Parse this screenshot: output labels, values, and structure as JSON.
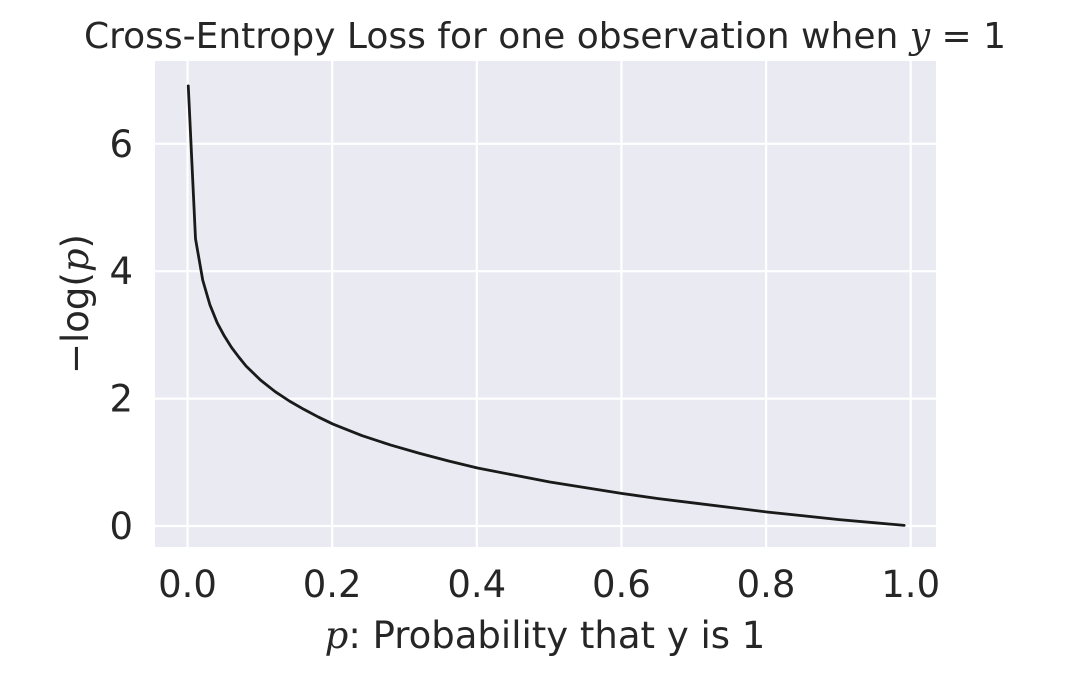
{
  "chart_data": {
    "type": "line",
    "title": {
      "prefix": "Cross-Entropy Loss for one observation when ",
      "math_var": "y",
      "math_rest": " = 1"
    },
    "xlabel": {
      "math_var": "p",
      "rest": ": Probability that y is 1"
    },
    "ylabel": {
      "prefix": "−log(",
      "math_var": "p",
      "suffix": ")"
    },
    "xlim": [
      -0.045,
      1.035
    ],
    "ylim": [
      -0.33,
      7.3
    ],
    "xticks": [
      0.0,
      0.2,
      0.4,
      0.6,
      0.8,
      1.0
    ],
    "xtick_labels": [
      "0.0",
      "0.2",
      "0.4",
      "0.6",
      "0.8",
      "1.0"
    ],
    "yticks": [
      0,
      2,
      4,
      6
    ],
    "ytick_labels": [
      "0",
      "2",
      "4",
      "6"
    ],
    "grid": true,
    "series": [
      {
        "function": "-log(p)",
        "color": "#1a1a1a",
        "x": [
          0.001,
          0.011,
          0.021,
          0.031,
          0.041,
          0.051,
          0.061,
          0.071,
          0.081,
          0.091,
          0.101,
          0.121,
          0.141,
          0.161,
          0.181,
          0.201,
          0.241,
          0.281,
          0.321,
          0.361,
          0.401,
          0.451,
          0.501,
          0.551,
          0.601,
          0.651,
          0.701,
          0.751,
          0.801,
          0.851,
          0.901,
          0.951,
          0.991
        ],
        "y": [
          6.91,
          4.51,
          3.86,
          3.47,
          3.19,
          2.98,
          2.8,
          2.65,
          2.51,
          2.4,
          2.29,
          2.11,
          1.96,
          1.83,
          1.71,
          1.6,
          1.42,
          1.27,
          1.14,
          1.02,
          0.91,
          0.8,
          0.69,
          0.6,
          0.51,
          0.43,
          0.36,
          0.29,
          0.22,
          0.16,
          0.1,
          0.05,
          0.01
        ]
      }
    ],
    "colors": {
      "plot_background": "#eaeaf2",
      "grid": "#ffffff",
      "text": "#262626",
      "line": "#1a1a1a"
    }
  }
}
